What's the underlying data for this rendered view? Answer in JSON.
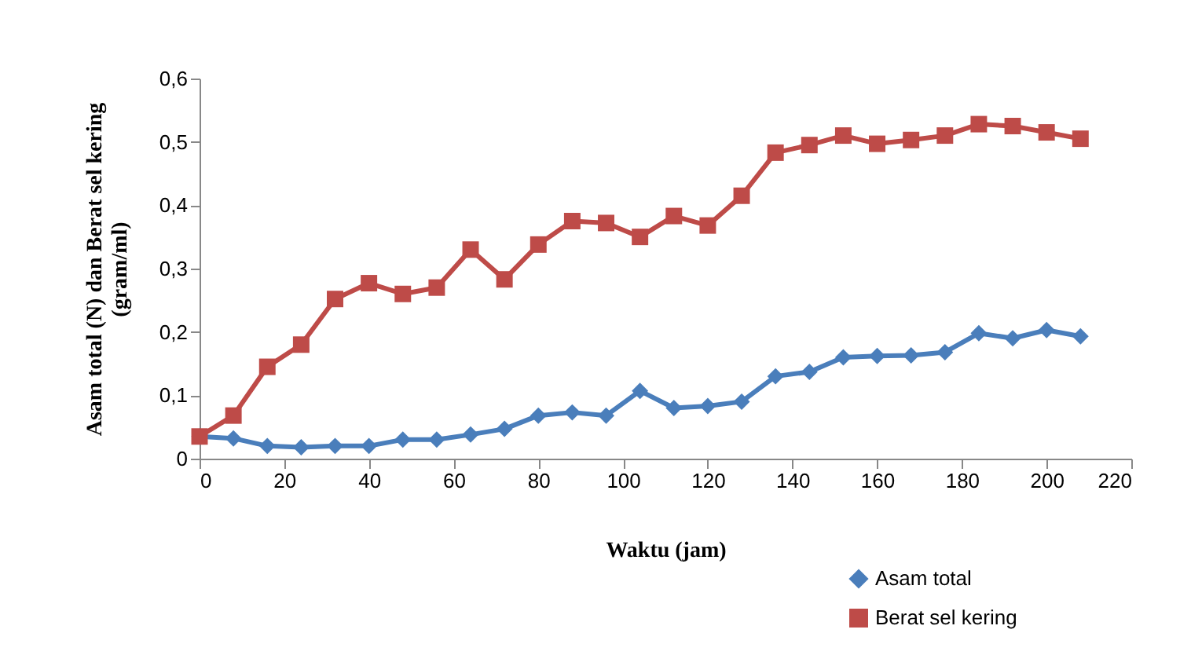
{
  "chart_data": {
    "type": "line",
    "xlabel": "Waktu (jam)",
    "ylabel": "Asam total (N) dan Berat sel kering (gram/ml)",
    "x": [
      0,
      8,
      16,
      24,
      32,
      40,
      48,
      56,
      64,
      72,
      80,
      88,
      96,
      104,
      112,
      120,
      128,
      136,
      144,
      152,
      160,
      168,
      176,
      184,
      192,
      200,
      208
    ],
    "series": [
      {
        "name": "Asam total",
        "color": "#4a7ebb",
        "marker": "diamond",
        "values": [
          0.035,
          0.032,
          0.02,
          0.018,
          0.02,
          0.02,
          0.03,
          0.03,
          0.038,
          0.047,
          0.068,
          0.073,
          0.068,
          0.107,
          0.08,
          0.083,
          0.09,
          0.13,
          0.137,
          0.16,
          0.162,
          0.163,
          0.168,
          0.198,
          0.19,
          0.203,
          0.193
        ]
      },
      {
        "name": "Berat sel kering",
        "color": "#be4b48",
        "marker": "square",
        "values": [
          0.035,
          0.068,
          0.145,
          0.18,
          0.252,
          0.277,
          0.26,
          0.27,
          0.33,
          0.283,
          0.338,
          0.375,
          0.372,
          0.35,
          0.383,
          0.368,
          0.415,
          0.483,
          0.495,
          0.51,
          0.497,
          0.503,
          0.51,
          0.528,
          0.525,
          0.515,
          0.505
        ]
      }
    ],
    "xlim": [
      0,
      220
    ],
    "xticks": [
      0,
      20,
      40,
      60,
      80,
      100,
      120,
      140,
      160,
      180,
      200,
      220
    ],
    "ylim": [
      0,
      0.6
    ],
    "yticks": [
      0,
      {
        "value": 0.1,
        "label": "0,1"
      },
      {
        "value": 0.2,
        "label": "0,2"
      },
      {
        "value": 0.3,
        "label": "0,3"
      },
      {
        "value": 0.4,
        "label": "0,4"
      },
      {
        "value": 0.5,
        "label": "0,5"
      },
      {
        "value": 0.6,
        "label": "0,6"
      }
    ],
    "legend": "bottom right",
    "line_style": "solid"
  }
}
